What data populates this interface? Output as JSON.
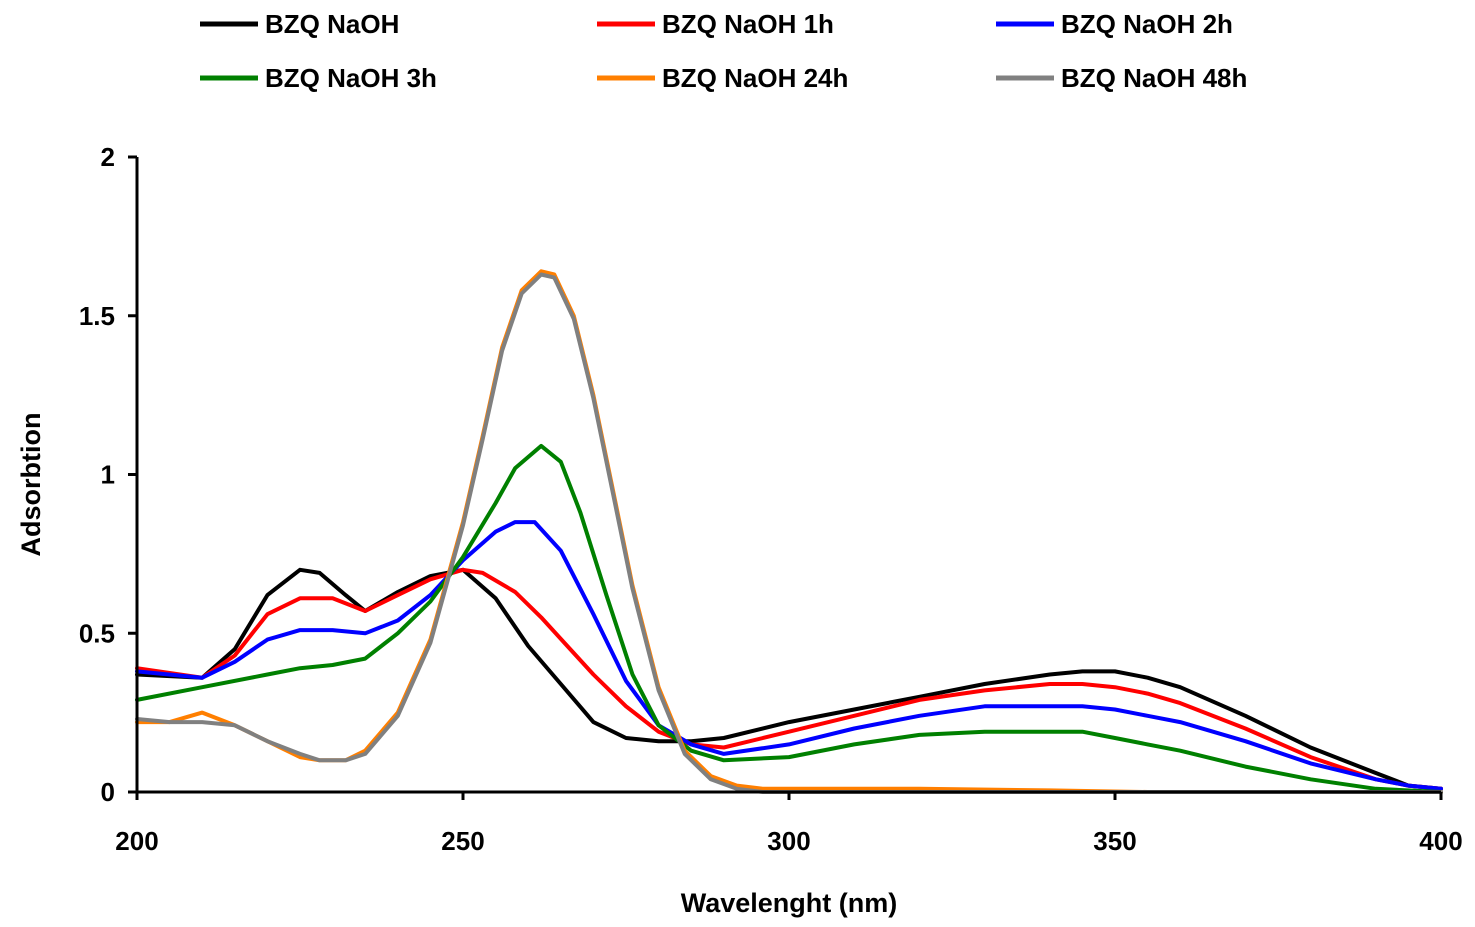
{
  "chart_data": {
    "type": "line",
    "title": "",
    "xlabel": "Wavelenght (nm)",
    "ylabel": "Adsorbtion",
    "xlim": [
      200,
      400
    ],
    "ylim": [
      0,
      2
    ],
    "x_ticks": [
      200,
      250,
      300,
      350,
      400
    ],
    "x_tick_labels": [
      "200",
      "250",
      "300",
      "350",
      "400"
    ],
    "y_ticks": [
      0,
      0.5,
      1,
      1.5,
      2
    ],
    "y_tick_labels": [
      "0",
      "0.5",
      "1",
      "1.5",
      "2"
    ],
    "grid": false,
    "legend_position": "top",
    "series": [
      {
        "name": "BZQ NaOH",
        "color": "#000000",
        "x": [
          200,
          210,
          215,
          220,
          225,
          228,
          232,
          235,
          240,
          245,
          250,
          255,
          260,
          265,
          270,
          275,
          280,
          285,
          290,
          300,
          310,
          320,
          330,
          340,
          345,
          350,
          355,
          360,
          370,
          380,
          390,
          395,
          400
        ],
        "y": [
          0.37,
          0.36,
          0.45,
          0.62,
          0.7,
          0.69,
          0.62,
          0.57,
          0.63,
          0.68,
          0.7,
          0.61,
          0.46,
          0.34,
          0.22,
          0.17,
          0.16,
          0.16,
          0.17,
          0.22,
          0.26,
          0.3,
          0.34,
          0.37,
          0.38,
          0.38,
          0.36,
          0.33,
          0.24,
          0.14,
          0.06,
          0.02,
          0.01
        ]
      },
      {
        "name": "BZQ NaOH 1h",
        "color": "#ff0000",
        "x": [
          200,
          210,
          215,
          220,
          225,
          230,
          235,
          240,
          245,
          250,
          253,
          258,
          262,
          266,
          270,
          275,
          280,
          285,
          290,
          300,
          310,
          320,
          330,
          340,
          345,
          350,
          355,
          360,
          370,
          380,
          390,
          395,
          400
        ],
        "y": [
          0.39,
          0.36,
          0.43,
          0.56,
          0.61,
          0.61,
          0.57,
          0.62,
          0.67,
          0.7,
          0.69,
          0.63,
          0.55,
          0.46,
          0.37,
          0.27,
          0.19,
          0.15,
          0.14,
          0.19,
          0.24,
          0.29,
          0.32,
          0.34,
          0.34,
          0.33,
          0.31,
          0.28,
          0.2,
          0.11,
          0.04,
          0.02,
          0.01
        ]
      },
      {
        "name": "BZQ NaOH 2h",
        "color": "#0000ff",
        "x": [
          200,
          210,
          215,
          220,
          225,
          230,
          235,
          240,
          245,
          250,
          255,
          258,
          261,
          265,
          270,
          275,
          280,
          285,
          290,
          300,
          310,
          320,
          330,
          340,
          345,
          350,
          355,
          360,
          370,
          380,
          390,
          395,
          400
        ],
        "y": [
          0.38,
          0.36,
          0.41,
          0.48,
          0.51,
          0.51,
          0.5,
          0.54,
          0.62,
          0.73,
          0.82,
          0.85,
          0.85,
          0.76,
          0.56,
          0.35,
          0.21,
          0.15,
          0.12,
          0.15,
          0.2,
          0.24,
          0.27,
          0.27,
          0.27,
          0.26,
          0.24,
          0.22,
          0.16,
          0.09,
          0.04,
          0.02,
          0.01
        ]
      },
      {
        "name": "BZQ NaOH 3h",
        "color": "#008000",
        "x": [
          200,
          210,
          220,
          225,
          230,
          235,
          240,
          245,
          250,
          255,
          258,
          262,
          265,
          268,
          272,
          276,
          280,
          285,
          290,
          300,
          310,
          320,
          330,
          340,
          345,
          350,
          355,
          360,
          370,
          380,
          390,
          400
        ],
        "y": [
          0.29,
          0.33,
          0.37,
          0.39,
          0.4,
          0.42,
          0.5,
          0.6,
          0.74,
          0.91,
          1.02,
          1.09,
          1.04,
          0.88,
          0.62,
          0.37,
          0.21,
          0.13,
          0.1,
          0.11,
          0.15,
          0.18,
          0.19,
          0.19,
          0.19,
          0.17,
          0.15,
          0.13,
          0.08,
          0.04,
          0.01,
          0.0
        ]
      },
      {
        "name": "BZQ NaOH 24h",
        "color": "#ff7f00",
        "x": [
          200,
          205,
          210,
          215,
          220,
          225,
          228,
          232,
          235,
          240,
          245,
          250,
          253,
          256,
          259,
          262,
          264,
          267,
          270,
          273,
          276,
          280,
          284,
          288,
          292,
          296,
          300,
          320,
          340,
          355,
          360,
          400
        ],
        "y": [
          0.22,
          0.22,
          0.25,
          0.21,
          0.16,
          0.11,
          0.1,
          0.1,
          0.13,
          0.25,
          0.48,
          0.85,
          1.12,
          1.4,
          1.58,
          1.64,
          1.63,
          1.5,
          1.25,
          0.95,
          0.65,
          0.33,
          0.13,
          0.05,
          0.02,
          0.01,
          0.01,
          0.01,
          0.005,
          0.0,
          0.0,
          0.0
        ]
      },
      {
        "name": "BZQ NaOH 48h",
        "color": "#808080",
        "x": [
          200,
          205,
          210,
          215,
          220,
          225,
          228,
          232,
          235,
          240,
          245,
          250,
          253,
          256,
          259,
          262,
          264,
          267,
          270,
          273,
          276,
          280,
          284,
          288,
          292,
          296,
          300,
          320,
          340,
          360,
          400
        ],
        "y": [
          0.23,
          0.22,
          0.22,
          0.21,
          0.16,
          0.12,
          0.1,
          0.1,
          0.12,
          0.24,
          0.47,
          0.84,
          1.11,
          1.39,
          1.57,
          1.63,
          1.62,
          1.49,
          1.24,
          0.94,
          0.64,
          0.32,
          0.12,
          0.04,
          0.01,
          0.0,
          0.0,
          0.0,
          0.0,
          0.0,
          0.0
        ]
      }
    ]
  }
}
